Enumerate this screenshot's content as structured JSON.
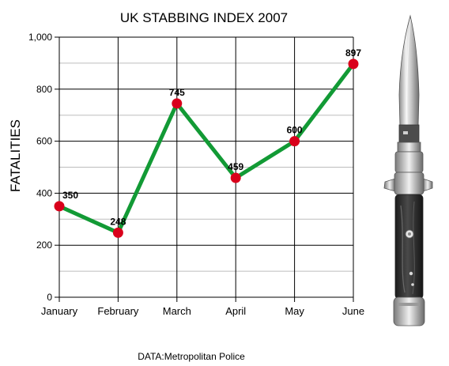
{
  "chart_data": {
    "type": "line",
    "title": "UK STABBING INDEX 2007",
    "ylabel": "FATALITIES",
    "xlabel": "",
    "categories": [
      "January",
      "February",
      "March",
      "April",
      "May",
      "June"
    ],
    "series": [
      {
        "values": [
          350,
          248,
          745,
          459,
          600,
          897
        ]
      }
    ],
    "data_labels": [
      "350",
      "248",
      "745",
      "459",
      "600",
      "897"
    ],
    "yticks": [
      0,
      200,
      400,
      600,
      800,
      1000
    ],
    "ytick_labels": [
      "0",
      "200",
      "400",
      "600",
      "800",
      "1,000"
    ],
    "ylim": [
      0,
      1000
    ],
    "grid": true,
    "line_color": "#129a35",
    "marker_color": "#d9001b",
    "grid_color": "#000000",
    "minor_grid_color": "#bdbdbd"
  },
  "source_note": "DATA:Metropolitan Police",
  "illustration": {
    "icon": "switchblade-knife-icon"
  }
}
